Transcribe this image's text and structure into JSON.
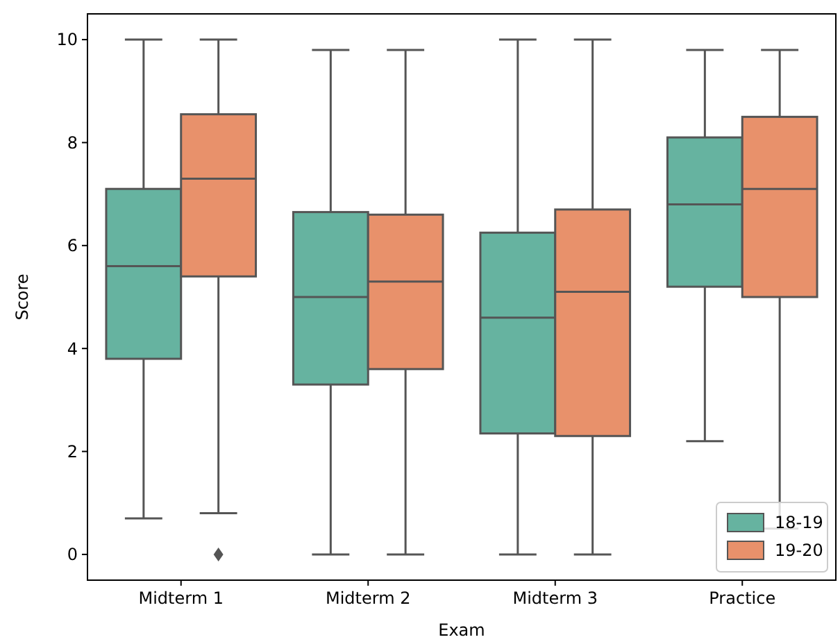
{
  "chart_data": {
    "type": "box",
    "xlabel": "Exam",
    "ylabel": "Score",
    "categories": [
      "Midterm 1",
      "Midterm 2",
      "Midterm 3",
      "Practice"
    ],
    "ylim": [
      -0.5,
      10.5
    ],
    "yticks": [
      0,
      2,
      4,
      6,
      8,
      10
    ],
    "legend": "bottom right",
    "grid": false,
    "series": [
      {
        "name": "18-19",
        "color": "#66b3a0",
        "boxes": [
          {
            "low": 0.7,
            "q1": 3.8,
            "median": 5.6,
            "q3": 7.1,
            "high": 10
          },
          {
            "low": 0,
            "q1": 3.3,
            "median": 5.0,
            "q3": 6.65,
            "high": 9.8
          },
          {
            "low": 0,
            "q1": 2.35,
            "median": 4.6,
            "q3": 6.25,
            "high": 10
          },
          {
            "low": 2.2,
            "q1": 5.2,
            "median": 6.8,
            "q3": 8.1,
            "high": 9.8
          }
        ]
      },
      {
        "name": "19-20",
        "color": "#e8916b",
        "boxes": [
          {
            "low": 0.8,
            "q1": 5.4,
            "median": 7.3,
            "q3": 8.55,
            "high": 10,
            "outliers": [
              0
            ]
          },
          {
            "low": 0,
            "q1": 3.6,
            "median": 5.3,
            "q3": 6.6,
            "high": 9.8
          },
          {
            "low": 0,
            "q1": 2.3,
            "median": 5.1,
            "q3": 6.7,
            "high": 10
          },
          {
            "low": 0.5,
            "q1": 5.0,
            "median": 7.1,
            "q3": 8.5,
            "high": 9.8
          }
        ]
      }
    ]
  }
}
